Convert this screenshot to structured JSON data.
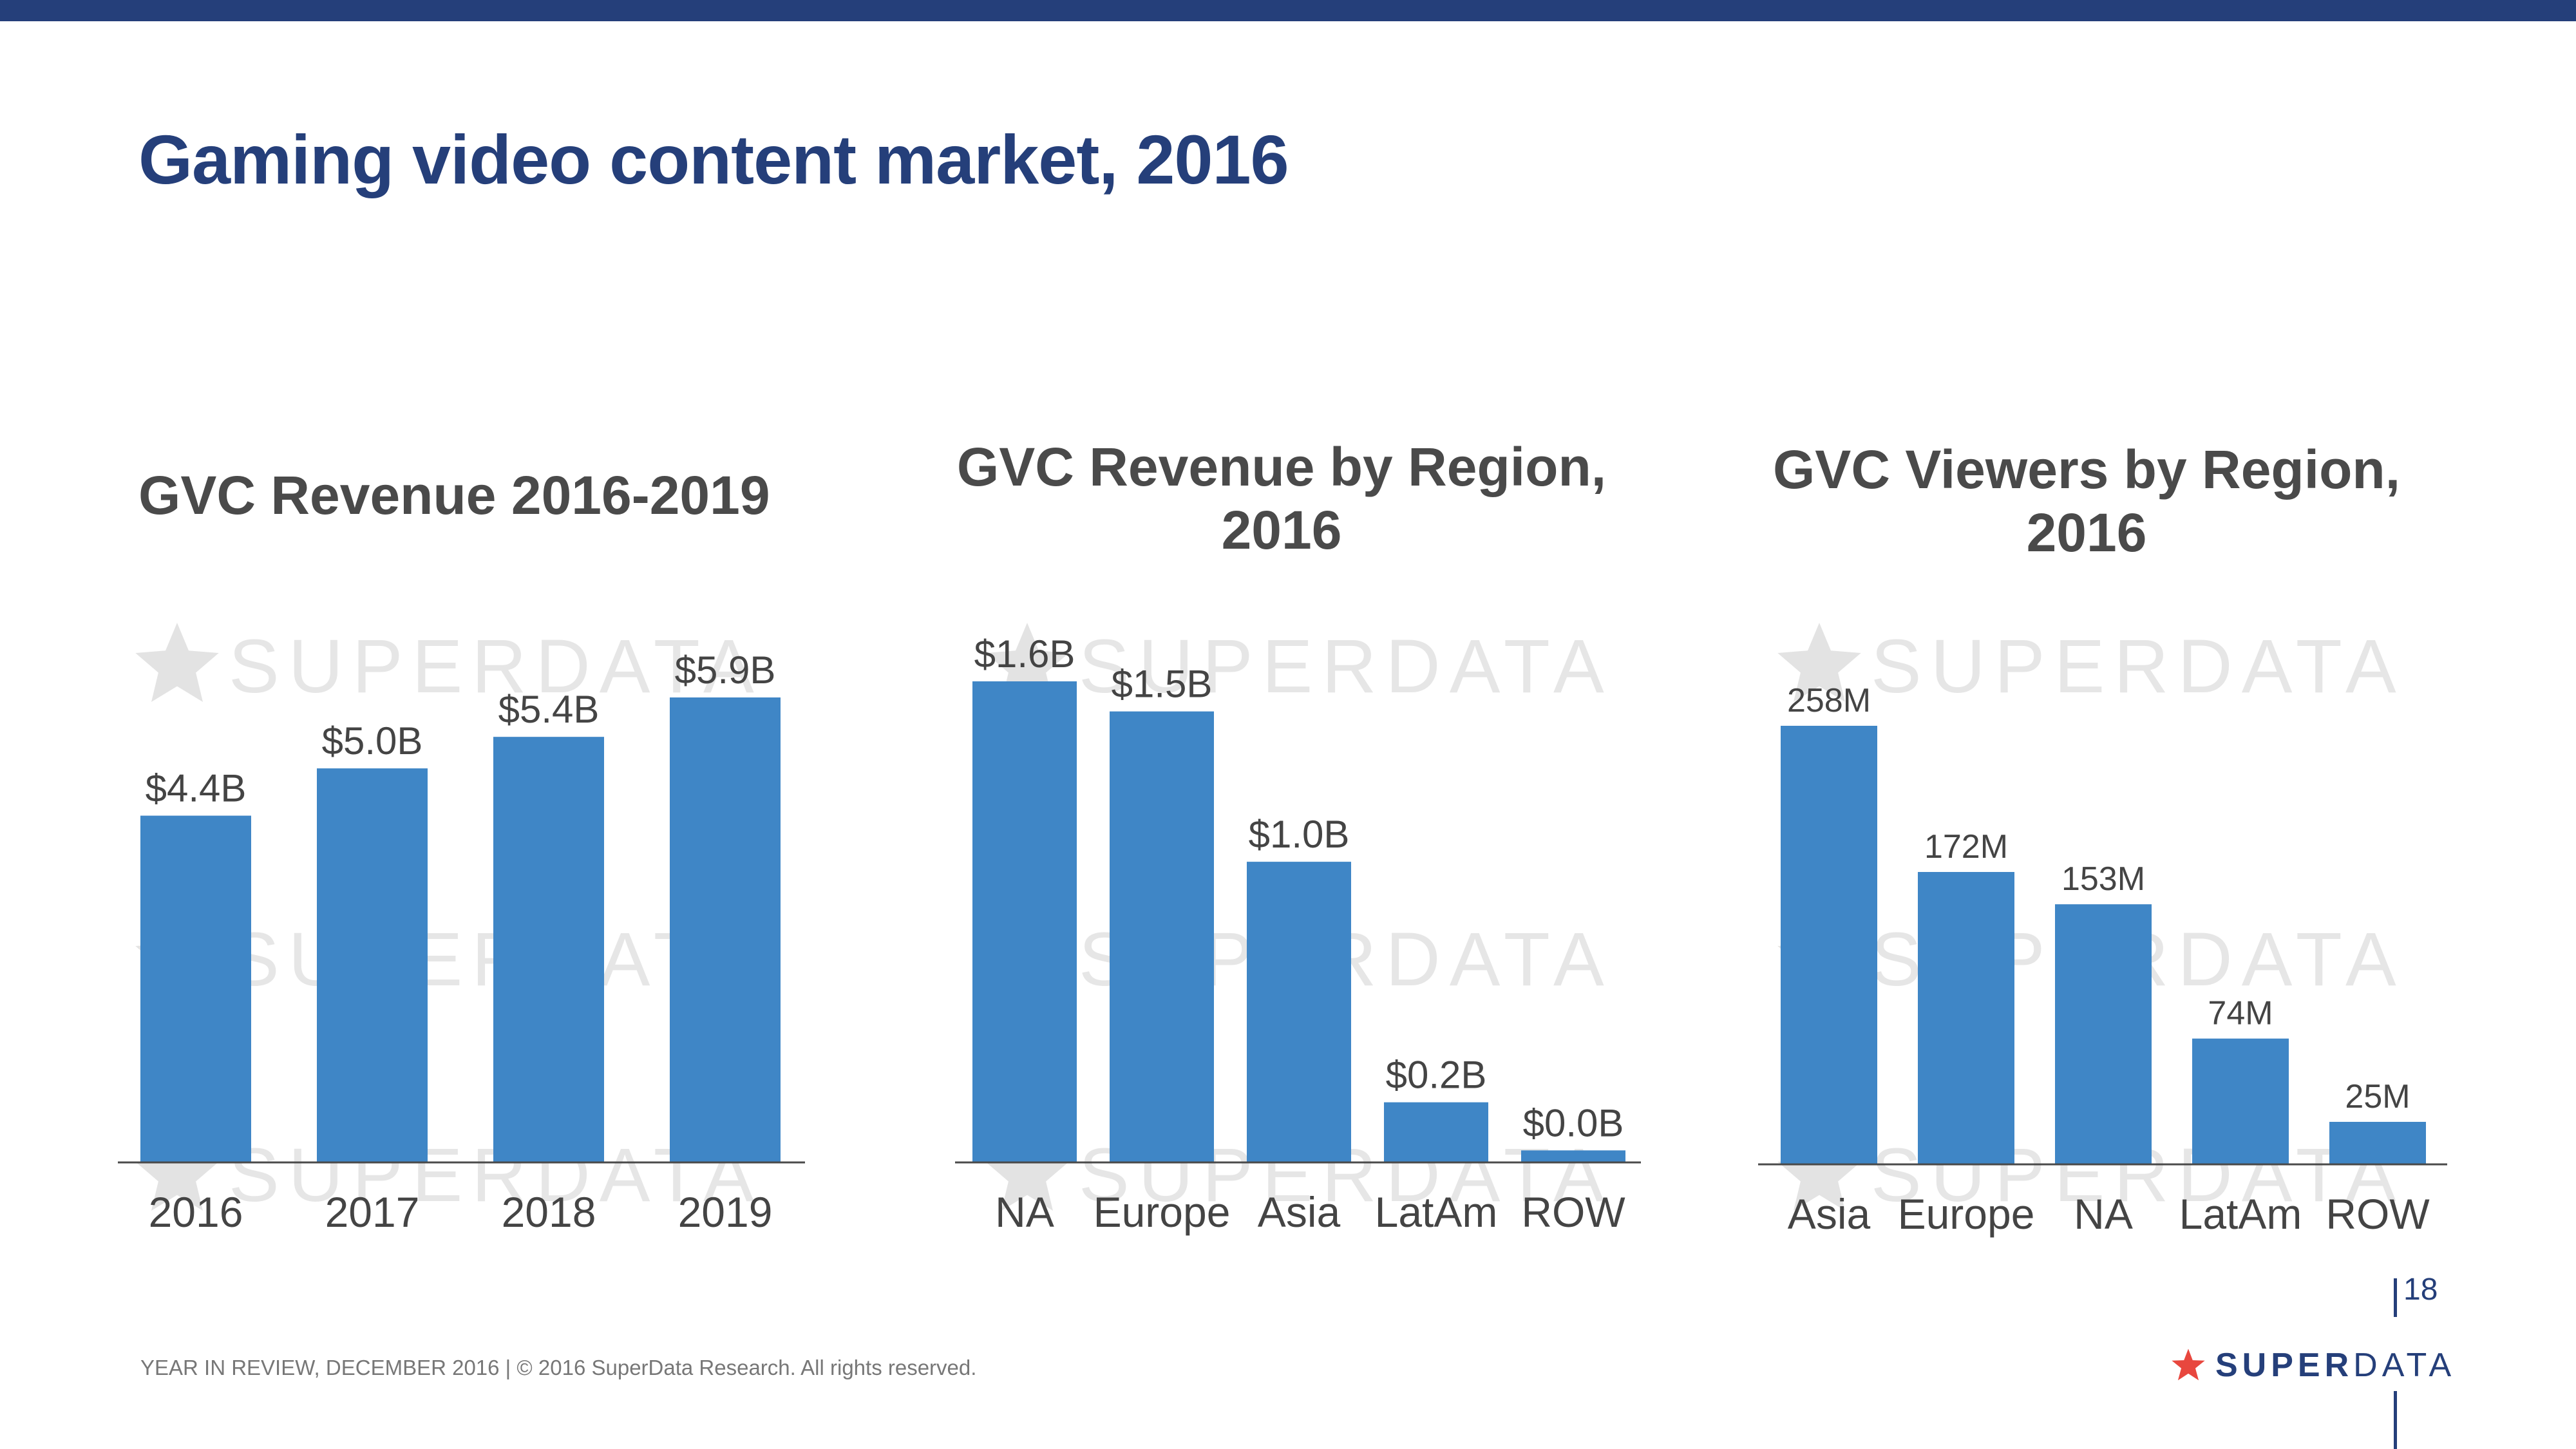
{
  "page": {
    "title": "Gaming video content market, 2016",
    "footer": "YEAR IN REVIEW, DECEMBER 2016  |  © 2016 SuperData Research. All rights reserved.",
    "page_number": "18",
    "logo": {
      "bold": "SUPER",
      "light": "DATA"
    },
    "watermark": "SUPERDATA"
  },
  "colors": {
    "bar": "#3f86c6",
    "axis": "#4a4a4a",
    "label": "#444444",
    "title": "#253f7a",
    "star": "#e8473e"
  },
  "chart_data": [
    {
      "type": "bar",
      "title": "GVC Revenue 2016-2019",
      "categories": [
        "2016",
        "2017",
        "2018",
        "2019"
      ],
      "values": [
        4.4,
        5.0,
        5.4,
        5.9
      ],
      "labels": [
        "$4.4B",
        "$5.0B",
        "$5.4B",
        "$5.9B"
      ],
      "unit": "$B",
      "xlabel": "",
      "ylabel": "",
      "ylim": [
        0,
        5.9
      ]
    },
    {
      "type": "bar",
      "title": "GVC Revenue by Region, 2016",
      "title_lines": [
        "GVC Revenue by Region,",
        "2016"
      ],
      "categories": [
        "NA",
        "Europe",
        "Asia",
        "LatAm",
        "ROW"
      ],
      "values": [
        1.6,
        1.5,
        1.0,
        0.2,
        0.04
      ],
      "labels": [
        "$1.6B",
        "$1.5B",
        "$1.0B",
        "$0.2B",
        "$0.0B"
      ],
      "unit": "$B",
      "xlabel": "",
      "ylabel": "",
      "ylim": [
        0,
        1.6
      ]
    },
    {
      "type": "bar",
      "title": "GVC Viewers by Region, 2016",
      "title_lines": [
        "GVC Viewers by Region,",
        "2016"
      ],
      "categories": [
        "Asia",
        "Europe",
        "NA",
        "LatAm",
        "ROW"
      ],
      "values": [
        258,
        172,
        153,
        74,
        25
      ],
      "labels": [
        "258M",
        "172M",
        "153M",
        "74M",
        "25M"
      ],
      "unit": "M viewers",
      "xlabel": "",
      "ylabel": "",
      "ylim": [
        0,
        258
      ]
    }
  ]
}
